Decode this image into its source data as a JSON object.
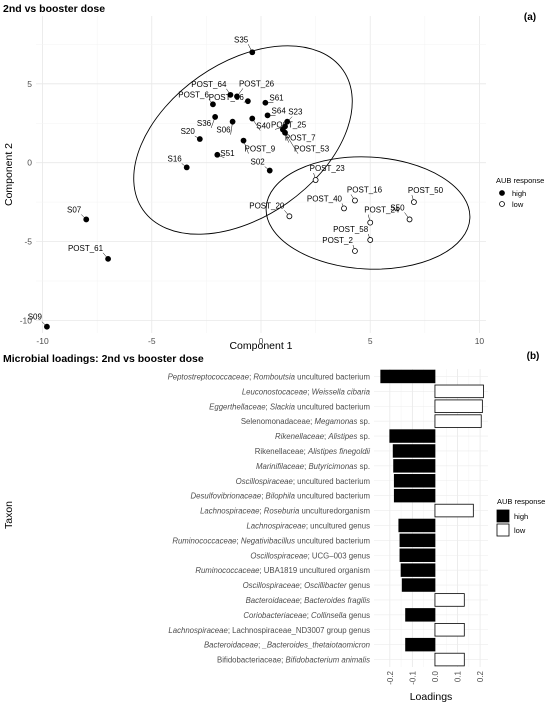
{
  "chart_data": [
    {
      "type": "scatter",
      "panel_label": "(a)",
      "title": "2nd vs booster dose",
      "xlabel": "Component 1",
      "ylabel": "Component 2",
      "xlim": [
        -10.3,
        10.3
      ],
      "ylim": [
        -10.8,
        9.3
      ],
      "xticks": [
        -10,
        -5,
        0,
        5,
        10
      ],
      "yticks": [
        -10,
        -5,
        0,
        5
      ],
      "grid": true,
      "legend": {
        "title": "AUB response",
        "position": "right",
        "entries": [
          {
            "label": "high",
            "filled": true
          },
          {
            "label": "low",
            "filled": false
          }
        ]
      },
      "series": [
        {
          "name": "high",
          "filled": true,
          "points": [
            {
              "label": "S35",
              "x": -0.4,
              "y": 7.0
            },
            {
              "label": "POST_64",
              "x": -1.4,
              "y": 4.3
            },
            {
              "label": "POST_26",
              "x": -1.1,
              "y": 4.2
            },
            {
              "label": "POST_6",
              "x": -2.2,
              "y": 3.7
            },
            {
              "label": "POST_36",
              "x": -0.6,
              "y": 3.9
            },
            {
              "label": "S61",
              "x": 0.2,
              "y": 3.8
            },
            {
              "label": "S64",
              "x": 0.3,
              "y": 3.0
            },
            {
              "label": "S23",
              "x": 1.2,
              "y": 2.6
            },
            {
              "label": "POST_25",
              "x": 1.1,
              "y": 2.3
            },
            {
              "label": "S36",
              "x": -2.1,
              "y": 2.9
            },
            {
              "label": "S06",
              "x": -1.3,
              "y": 2.6
            },
            {
              "label": "S40",
              "x": -0.4,
              "y": 2.8
            },
            {
              "label": "POST_7",
              "x": 1.0,
              "y": 2.1
            },
            {
              "label": "S20",
              "x": -2.8,
              "y": 1.5
            },
            {
              "label": "POST_9",
              "x": -0.8,
              "y": 1.4
            },
            {
              "label": "POST_53",
              "x": 1.1,
              "y": 1.9
            },
            {
              "label": "S51",
              "x": -2.0,
              "y": 0.5
            },
            {
              "label": "S16",
              "x": -3.4,
              "y": -0.3
            },
            {
              "label": "S02",
              "x": 0.4,
              "y": -0.5
            },
            {
              "label": "S07",
              "x": -8.0,
              "y": -3.6
            },
            {
              "label": "POST_61",
              "x": -7.0,
              "y": -6.1
            },
            {
              "label": "S09",
              "x": -9.8,
              "y": -10.4
            }
          ]
        },
        {
          "name": "low",
          "filled": false,
          "points": [
            {
              "label": "POST_23",
              "x": 2.5,
              "y": -1.1
            },
            {
              "label": "POST_16",
              "x": 4.3,
              "y": -2.4
            },
            {
              "label": "POST_40",
              "x": 3.8,
              "y": -2.9
            },
            {
              "label": "POST_50",
              "x": 7.0,
              "y": -2.5
            },
            {
              "label": "POST_20",
              "x": 1.3,
              "y": -3.4
            },
            {
              "label": "POST_24",
              "x": 5.0,
              "y": -3.8
            },
            {
              "label": "S50",
              "x": 6.8,
              "y": -3.6
            },
            {
              "label": "POST_58",
              "x": 5.0,
              "y": -4.9
            },
            {
              "label": "POST_2",
              "x": 4.3,
              "y": -5.6
            }
          ]
        }
      ]
    },
    {
      "type": "bar",
      "orientation": "horizontal",
      "panel_label": "(b)",
      "title": "Microbial loadings: 2nd vs booster dose",
      "xlabel": "Loadings",
      "ylabel": "Taxon",
      "xlim": [
        -0.27,
        0.235
      ],
      "xticks": [
        -0.2,
        -0.1,
        0.0,
        0.1,
        0.2
      ],
      "xtick_labels": [
        "-0.2",
        "-0.1",
        "0.0",
        "0.1",
        "0.2"
      ],
      "grid": true,
      "legend": {
        "title": "AUB response",
        "position": "right",
        "entries": [
          {
            "label": "high",
            "filled": true
          },
          {
            "label": "low",
            "filled": false
          }
        ]
      },
      "bars": [
        {
          "parts": [
            {
              "t": "Peptostreptococcaceae",
              "i": true
            },
            {
              "t": "; ",
              "i": false
            },
            {
              "t": "Romboutsia",
              "i": true
            },
            {
              "t": " uncultured bacterium",
              "i": false
            }
          ],
          "value": -0.24,
          "group": "high"
        },
        {
          "parts": [
            {
              "t": "Leuconostocaceae",
              "i": true
            },
            {
              "t": "; ",
              "i": false
            },
            {
              "t": "Weissella cibaria",
              "i": true
            }
          ],
          "value": 0.215,
          "group": "low"
        },
        {
          "parts": [
            {
              "t": "Eggerthellaceae",
              "i": true
            },
            {
              "t": "; ",
              "i": false
            },
            {
              "t": "Slackia",
              "i": true
            },
            {
              "t": " uncultured bacterium",
              "i": false
            }
          ],
          "value": 0.21,
          "group": "low"
        },
        {
          "parts": [
            {
              "t": "Selenomonadaceae; ",
              "i": false
            },
            {
              "t": "Megamonas",
              "i": true
            },
            {
              "t": " sp.",
              "i": false
            }
          ],
          "value": 0.205,
          "group": "low"
        },
        {
          "parts": [
            {
              "t": "Rikenellaceae",
              "i": true
            },
            {
              "t": "; ",
              "i": false
            },
            {
              "t": "Alistipes",
              "i": true
            },
            {
              "t": " sp.",
              "i": false
            }
          ],
          "value": -0.2,
          "group": "high"
        },
        {
          "parts": [
            {
              "t": "Rikenellaceae; ",
              "i": false
            },
            {
              "t": "Alistipes finegoldii",
              "i": true
            }
          ],
          "value": -0.185,
          "group": "high"
        },
        {
          "parts": [
            {
              "t": "Marinifilaceae",
              "i": true
            },
            {
              "t": "; ",
              "i": false
            },
            {
              "t": "Butyricimonas",
              "i": true
            },
            {
              "t": " sp.",
              "i": false
            }
          ],
          "value": -0.183,
          "group": "high"
        },
        {
          "parts": [
            {
              "t": "Oscillospiraceae",
              "i": true
            },
            {
              "t": "; uncultured bacterium",
              "i": false
            }
          ],
          "value": -0.18,
          "group": "high"
        },
        {
          "parts": [
            {
              "t": "Desulfovibrionaceae",
              "i": true
            },
            {
              "t": "; ",
              "i": false
            },
            {
              "t": "Bilophila",
              "i": true
            },
            {
              "t": " uncultured bacterium",
              "i": false
            }
          ],
          "value": -0.18,
          "group": "high"
        },
        {
          "parts": [
            {
              "t": "Lachnospiraceae",
              "i": true
            },
            {
              "t": "; ",
              "i": false
            },
            {
              "t": "Roseburia",
              "i": true
            },
            {
              "t": " unculturedorganism",
              "i": false
            }
          ],
          "value": 0.17,
          "group": "low"
        },
        {
          "parts": [
            {
              "t": "Lachnospiraceae",
              "i": true
            },
            {
              "t": "; uncultured genus",
              "i": false
            }
          ],
          "value": -0.16,
          "group": "high"
        },
        {
          "parts": [
            {
              "t": "Ruminococcaceae",
              "i": true
            },
            {
              "t": "; ",
              "i": false
            },
            {
              "t": "Negativibacillus",
              "i": true
            },
            {
              "t": " uncultured bacterium",
              "i": false
            }
          ],
          "value": -0.155,
          "group": "high"
        },
        {
          "parts": [
            {
              "t": "Oscillospiraceae",
              "i": true
            },
            {
              "t": "; UCG–003 genus",
              "i": false
            }
          ],
          "value": -0.155,
          "group": "high"
        },
        {
          "parts": [
            {
              "t": "Ruminococcaceae",
              "i": true
            },
            {
              "t": "; UBA1819 uncultured organism",
              "i": false
            }
          ],
          "value": -0.15,
          "group": "high"
        },
        {
          "parts": [
            {
              "t": "Oscillospiraceae",
              "i": true
            },
            {
              "t": "; ",
              "i": false
            },
            {
              "t": "Oscillibacter",
              "i": true
            },
            {
              "t": " genus",
              "i": false
            }
          ],
          "value": -0.145,
          "group": "high"
        },
        {
          "parts": [
            {
              "t": "Bacteroidaceae",
              "i": true
            },
            {
              "t": "; ",
              "i": false
            },
            {
              "t": "Bacteroides fragilis",
              "i": true
            }
          ],
          "value": 0.13,
          "group": "low"
        },
        {
          "parts": [
            {
              "t": "Coriobacteriaceae",
              "i": true
            },
            {
              "t": "; ",
              "i": false
            },
            {
              "t": "Collinsella",
              "i": true
            },
            {
              "t": " genus",
              "i": false
            }
          ],
          "value": -0.13,
          "group": "high"
        },
        {
          "parts": [
            {
              "t": "Lachnospiraceae",
              "i": true
            },
            {
              "t": "; Lachnospiraceae_ND3007 group genus",
              "i": false
            }
          ],
          "value": 0.13,
          "group": "low"
        },
        {
          "parts": [
            {
              "t": "Bacteroidaceae",
              "i": true
            },
            {
              "t": "; ",
              "i": false
            },
            {
              "t": "_Bacteroides_thetaiotaomicron",
              "i": true
            }
          ],
          "value": -0.13,
          "group": "high"
        },
        {
          "parts": [
            {
              "t": "Bifidobacteriaceae; ",
              "i": false
            },
            {
              "t": "Bifidobacterium animalis",
              "i": true
            }
          ],
          "value": 0.13,
          "group": "low"
        }
      ]
    }
  ]
}
